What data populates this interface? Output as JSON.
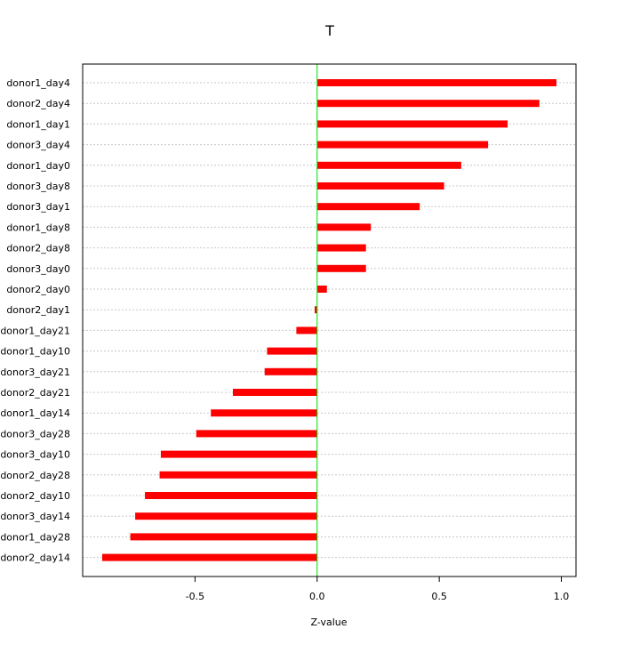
{
  "chart_data": {
    "type": "bar",
    "orientation": "horizontal",
    "title": "T",
    "xlabel": "Z-value",
    "ylabel": "",
    "xlim": [
      -0.96,
      1.06
    ],
    "xticks": [
      -0.5,
      0.0,
      0.5,
      1.0
    ],
    "xtick_labels": [
      "-0.5",
      "0.0",
      "0.5",
      "1.0"
    ],
    "grid": "horizontal dotted",
    "reference_line": {
      "x": 0,
      "color": "#00dd00"
    },
    "bar_color": "#ff0000",
    "categories": [
      "donor1_day4",
      "donor2_day4",
      "donor1_day1",
      "donor3_day4",
      "donor1_day0",
      "donor3_day8",
      "donor3_day1",
      "donor1_day8",
      "donor2_day8",
      "donor3_day0",
      "donor2_day0",
      "donor2_day1",
      "donor1_day21",
      "donor1_day10",
      "donor3_day21",
      "donor2_day21",
      "donor1_day14",
      "donor3_day28",
      "donor3_day10",
      "donor2_day28",
      "donor2_day10",
      "donor3_day14",
      "donor1_day28",
      "donor2_day14"
    ],
    "values": [
      0.98,
      0.91,
      0.78,
      0.7,
      0.59,
      0.52,
      0.42,
      0.22,
      0.2,
      0.2,
      0.04,
      -0.01,
      -0.085,
      -0.205,
      -0.215,
      -0.345,
      -0.435,
      -0.495,
      -0.64,
      -0.645,
      -0.705,
      -0.745,
      -0.765,
      -0.88
    ]
  }
}
